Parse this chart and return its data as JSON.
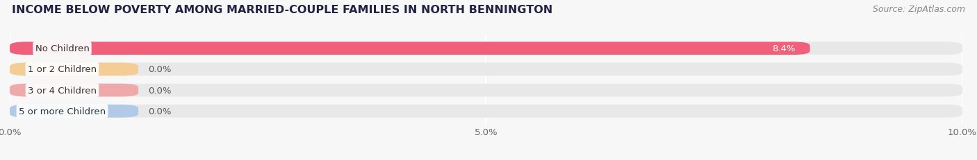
{
  "title": "INCOME BELOW POVERTY AMONG MARRIED-COUPLE FAMILIES IN NORTH BENNINGTON",
  "source": "Source: ZipAtlas.com",
  "categories": [
    "No Children",
    "1 or 2 Children",
    "3 or 4 Children",
    "5 or more Children"
  ],
  "values": [
    8.4,
    0.0,
    0.0,
    0.0
  ],
  "bar_colors": [
    "#f0607a",
    "#f0b87a",
    "#f09090",
    "#a0b8e0"
  ],
  "label_bg_colors": [
    "#f0607a",
    "#f5c888",
    "#f0a0a0",
    "#aac4e8"
  ],
  "xlim": [
    0,
    10.0
  ],
  "xticks": [
    0.0,
    5.0,
    10.0
  ],
  "xticklabels": [
    "0.0%",
    "5.0%",
    "10.0%"
  ],
  "bar_height": 0.62,
  "background_color": "#f7f7f7",
  "bar_bg_color": "#e8e8e8",
  "grid_color": "#ffffff",
  "title_fontsize": 11.5,
  "source_fontsize": 9,
  "label_fontsize": 9.5,
  "value_fontsize": 9.5,
  "value_color_inside": "#ffffff",
  "value_color_outside": "#555555",
  "label_text_color": "#333333"
}
